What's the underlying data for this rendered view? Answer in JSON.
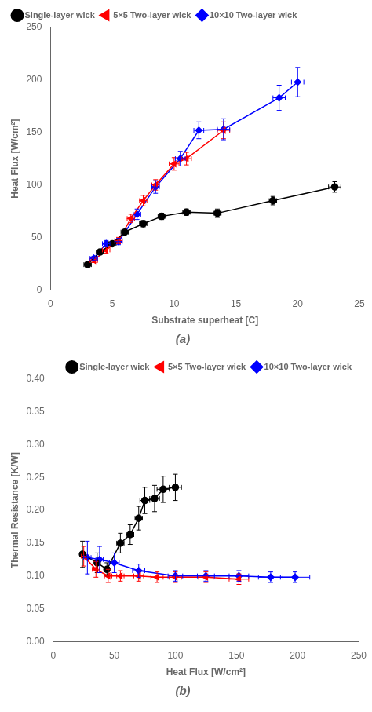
{
  "chart_data": [
    {
      "type": "line",
      "title": "(a)",
      "xlabel": "Substrate superheat [C]",
      "ylabel": "Heat Flux [W/cm²]",
      "xlim": [
        0,
        25
      ],
      "ylim": [
        0,
        250
      ],
      "xticks": [
        0,
        5,
        10,
        15,
        20,
        25
      ],
      "yticks": [
        0,
        50,
        100,
        150,
        200,
        250
      ],
      "grid": false,
      "legend": "upper left",
      "series": [
        {
          "name": "Single-layer wick",
          "color": "black",
          "marker": "circle",
          "line_style": "solid",
          "x": [
            3.0,
            4.0,
            5.0,
            6.0,
            7.5,
            9.0,
            11.0,
            13.5,
            18.0,
            23.0
          ],
          "values": [
            24,
            36,
            44,
            55,
            63,
            70,
            74,
            73,
            85,
            98
          ],
          "xerr": [
            0.3,
            0.3,
            0.3,
            0.3,
            0.3,
            0.3,
            0.3,
            0.3,
            0.3,
            0.5
          ],
          "yerr": [
            2,
            2,
            2,
            2,
            3,
            3,
            3,
            4,
            4,
            5
          ]
        },
        {
          "name": "5×5 Two-layer wick",
          "color": "red",
          "marker": "triangle-left",
          "line_style": "solid",
          "x": [
            3.5,
            4.5,
            5.5,
            6.5,
            7.5,
            8.5,
            10.0,
            11.0,
            14.0
          ],
          "values": [
            28,
            38,
            47,
            68,
            85,
            100,
            120,
            125,
            152
          ],
          "xerr": [
            0.3,
            0.3,
            0.3,
            0.3,
            0.3,
            0.3,
            0.4,
            0.4,
            0.5
          ],
          "yerr": [
            2,
            3,
            3,
            4,
            5,
            5,
            6,
            6,
            8
          ]
        },
        {
          "name": "10×10 Two-layer wick",
          "color": "blue",
          "marker": "diamond",
          "line_style": "solid",
          "x": [
            3.5,
            4.5,
            5.5,
            7.0,
            8.5,
            10.5,
            12.0,
            14.0,
            18.5,
            20.0
          ],
          "values": [
            30,
            44,
            46,
            72,
            98,
            125,
            152,
            153,
            183,
            198
          ],
          "xerr": [
            0.3,
            0.3,
            0.3,
            0.3,
            0.3,
            0.4,
            0.4,
            0.5,
            0.5,
            0.5
          ],
          "yerr": [
            2,
            3,
            3,
            5,
            6,
            7,
            8,
            10,
            12,
            14
          ]
        }
      ]
    },
    {
      "type": "line",
      "title": "(b)",
      "xlabel": "Heat Flux [W/cm²]",
      "ylabel": "Thermal Resistance [K/W]",
      "xlim": [
        0,
        250
      ],
      "ylim": [
        0,
        0.4
      ],
      "xticks": [
        0,
        50,
        100,
        150,
        200,
        250
      ],
      "yticks": [
        {
          "value": 0,
          "label": "0.00"
        },
        0.05,
        {
          "value": 0.1,
          "label": "0.10"
        },
        0.15,
        {
          "value": 0.2,
          "label": "0.20"
        },
        0.25,
        {
          "value": 0.3,
          "label": "0.30"
        },
        0.35,
        {
          "value": 0.4,
          "label": "0.40"
        }
      ],
      "grid": false,
      "legend": "upper right",
      "series": [
        {
          "name": "Single-layer wick",
          "color": "black",
          "marker": "circle",
          "line_style": "solid",
          "x": [
            24,
            36,
            44,
            55,
            63,
            70,
            75,
            83,
            90,
            100
          ],
          "values": [
            0.133,
            0.12,
            0.11,
            0.15,
            0.163,
            0.188,
            0.215,
            0.218,
            0.232,
            0.235
          ],
          "xerr": [
            2,
            2,
            2,
            3,
            3,
            3,
            4,
            4,
            5,
            5
          ],
          "yerr": [
            0.02,
            0.015,
            0.01,
            0.015,
            0.015,
            0.018,
            0.02,
            0.02,
            0.02,
            0.02
          ]
        },
        {
          "name": "5×5 Two-layer wick",
          "color": "red",
          "marker": "triangle-left",
          "line_style": "solid",
          "x": [
            25,
            35,
            45,
            55,
            70,
            85,
            100,
            125,
            152
          ],
          "values": [
            0.13,
            0.11,
            0.1,
            0.1,
            0.1,
            0.098,
            0.098,
            0.098,
            0.095
          ],
          "xerr": [
            2,
            3,
            3,
            3,
            4,
            5,
            5,
            6,
            8
          ],
          "yerr": [
            0.015,
            0.012,
            0.01,
            0.008,
            0.008,
            0.008,
            0.008,
            0.008,
            0.008
          ]
        },
        {
          "name": "10×10 Two-layer wick",
          "color": "blue",
          "marker": "diamond",
          "line_style": "solid",
          "x": [
            28,
            38,
            50,
            70,
            100,
            125,
            152,
            178,
            198
          ],
          "values": [
            0.128,
            0.125,
            0.12,
            0.108,
            0.1,
            0.1,
            0.1,
            0.098,
            0.098
          ],
          "xerr": [
            3,
            3,
            4,
            5,
            6,
            7,
            8,
            10,
            12
          ],
          "yerr": [
            0.025,
            0.02,
            0.015,
            0.01,
            0.008,
            0.008,
            0.008,
            0.008,
            0.008
          ]
        }
      ]
    }
  ]
}
